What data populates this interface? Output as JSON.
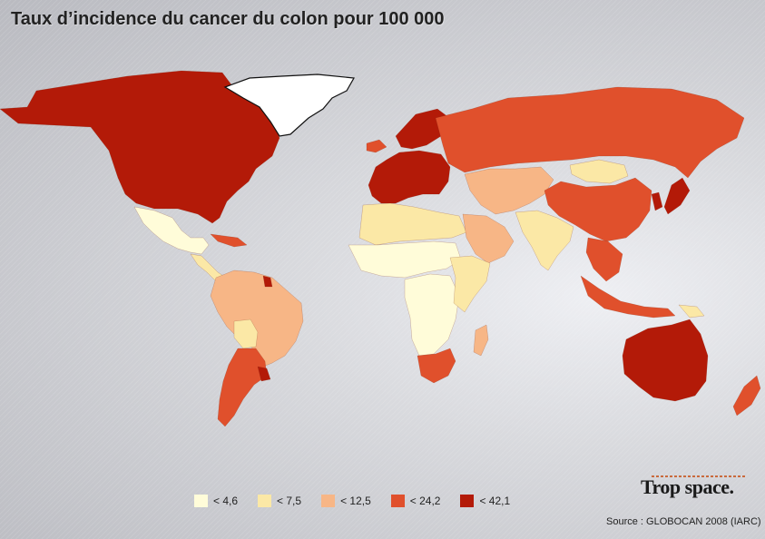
{
  "title": "Taux d’incidence du cancer du colon pour 100 000",
  "legend": [
    {
      "label": "< 4,6",
      "color": "#fffcd9"
    },
    {
      "label": "< 7,5",
      "color": "#fbe8a6"
    },
    {
      "label": "< 12,5",
      "color": "#f7b686"
    },
    {
      "label": "< 24,2",
      "color": "#e0502c"
    },
    {
      "label": "< 42,1",
      "color": "#b31a08"
    }
  ],
  "brand": "Trop space.",
  "source": "Source : GLOBOCAN 2008 (IARC)",
  "regions": [
    {
      "name": "North America",
      "class": 4
    },
    {
      "name": "Greenland",
      "class": -1
    },
    {
      "name": "Mexico",
      "class": 0
    },
    {
      "name": "Central America",
      "class": 1
    },
    {
      "name": "Caribbean",
      "class": 3
    },
    {
      "name": "Brazil",
      "class": 2
    },
    {
      "name": "Bolivia",
      "class": 1
    },
    {
      "name": "Argentina",
      "class": 3
    },
    {
      "name": "Uruguay",
      "class": 4
    },
    {
      "name": "Guiana",
      "class": 4
    },
    {
      "name": "Western Europe",
      "class": 4
    },
    {
      "name": "Scandinavia",
      "class": 4
    },
    {
      "name": "Iceland",
      "class": 3
    },
    {
      "name": "Russia",
      "class": 3
    },
    {
      "name": "Mongolia",
      "class": 1
    },
    {
      "name": "China",
      "class": 3
    },
    {
      "name": "Japan",
      "class": 4
    },
    {
      "name": "Korea",
      "class": 4
    },
    {
      "name": "Central Asia",
      "class": 2
    },
    {
      "name": "India",
      "class": 1
    },
    {
      "name": "Southeast Asia",
      "class": 3
    },
    {
      "name": "Indonesia",
      "class": 3
    },
    {
      "name": "Papua New Guinea",
      "class": 1
    },
    {
      "name": "Australia",
      "class": 4
    },
    {
      "name": "New Zealand",
      "class": 3
    },
    {
      "name": "North Africa",
      "class": 1
    },
    {
      "name": "Arabian Peninsula",
      "class": 2
    },
    {
      "name": "Sahel",
      "class": 0
    },
    {
      "name": "Central Africa",
      "class": 0
    },
    {
      "name": "East Africa",
      "class": 1
    },
    {
      "name": "South Africa",
      "class": 3
    },
    {
      "name": "Madagascar",
      "class": 2
    }
  ]
}
